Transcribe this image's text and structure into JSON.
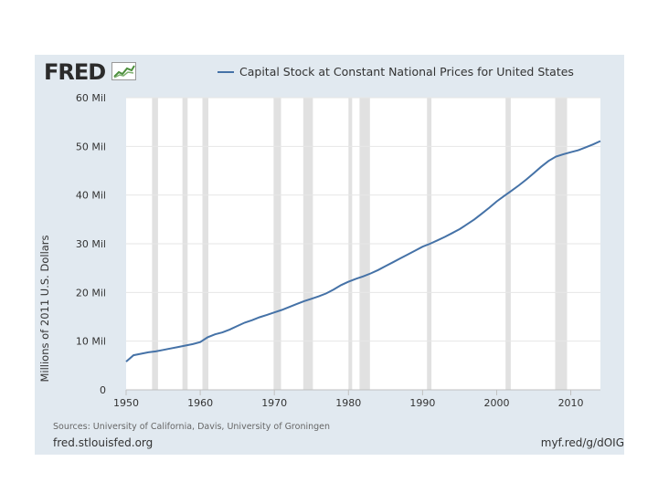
{
  "brand": {
    "logo_text": "FRED"
  },
  "footer": {
    "sources": "Sources: University of California, Davis, University of Groningen",
    "site": "fred.stlouisfed.org",
    "short_link": "myf.red/g/dOIG"
  },
  "colors": {
    "line": "#4572a7",
    "panel": "#e1e9f0",
    "plot_bg": "#ffffff",
    "recession": "#e1e1e1"
  },
  "chart_data": {
    "type": "line",
    "title": "",
    "xlabel": "",
    "ylabel": "Millions of 2011 U.S. Dollars",
    "xlim": [
      1950,
      2014
    ],
    "ylim": [
      0,
      60
    ],
    "x_ticks": [
      1950,
      1960,
      1970,
      1980,
      1990,
      2000,
      2010
    ],
    "y_ticks": [
      {
        "value": 0,
        "label": "0"
      },
      {
        "value": 10,
        "label": "10 Mil"
      },
      {
        "value": 20,
        "label": "20 Mil"
      },
      {
        "value": 30,
        "label": "30 Mil"
      },
      {
        "value": 40,
        "label": "40 Mil"
      },
      {
        "value": 50,
        "label": "50 Mil"
      },
      {
        "value": 60,
        "label": "60 Mil"
      }
    ],
    "grid": true,
    "legend": "top",
    "recessions": [
      [
        1953.5,
        1954.3
      ],
      [
        1957.6,
        1958.3
      ],
      [
        1960.3,
        1961.1
      ],
      [
        1969.9,
        1970.9
      ],
      [
        1973.9,
        1975.2
      ],
      [
        1980.0,
        1980.5
      ],
      [
        1981.5,
        1982.9
      ],
      [
        1990.6,
        1991.2
      ],
      [
        2001.2,
        2001.9
      ],
      [
        2007.9,
        2009.5
      ]
    ],
    "series": [
      {
        "name": "Capital Stock at Constant National Prices for United States",
        "x": [
          1950,
          1951,
          1952,
          1953,
          1954,
          1955,
          1956,
          1957,
          1958,
          1959,
          1960,
          1961,
          1962,
          1963,
          1964,
          1965,
          1966,
          1967,
          1968,
          1969,
          1970,
          1971,
          1972,
          1973,
          1974,
          1975,
          1976,
          1977,
          1978,
          1979,
          1980,
          1981,
          1982,
          1983,
          1984,
          1985,
          1986,
          1987,
          1988,
          1989,
          1990,
          1991,
          1992,
          1993,
          1994,
          1995,
          1996,
          1997,
          1998,
          1999,
          2000,
          2001,
          2002,
          2003,
          2004,
          2005,
          2006,
          2007,
          2008,
          2009,
          2010,
          2011,
          2012,
          2013,
          2014
        ],
        "values": [
          5.8,
          7.1,
          7.4,
          7.7,
          7.9,
          8.2,
          8.5,
          8.8,
          9.1,
          9.4,
          9.8,
          10.8,
          11.4,
          11.8,
          12.4,
          13.1,
          13.8,
          14.3,
          14.9,
          15.4,
          15.9,
          16.4,
          17.0,
          17.6,
          18.2,
          18.7,
          19.2,
          19.8,
          20.6,
          21.5,
          22.2,
          22.8,
          23.3,
          23.9,
          24.6,
          25.4,
          26.2,
          27.0,
          27.8,
          28.6,
          29.4,
          30.0,
          30.7,
          31.4,
          32.2,
          33.0,
          34.0,
          35.0,
          36.2,
          37.4,
          38.7,
          39.8,
          40.9,
          42.0,
          43.2,
          44.5,
          45.8,
          47.0,
          47.9,
          48.4,
          48.8,
          49.2,
          49.8,
          50.4,
          51.1
        ]
      }
    ]
  }
}
